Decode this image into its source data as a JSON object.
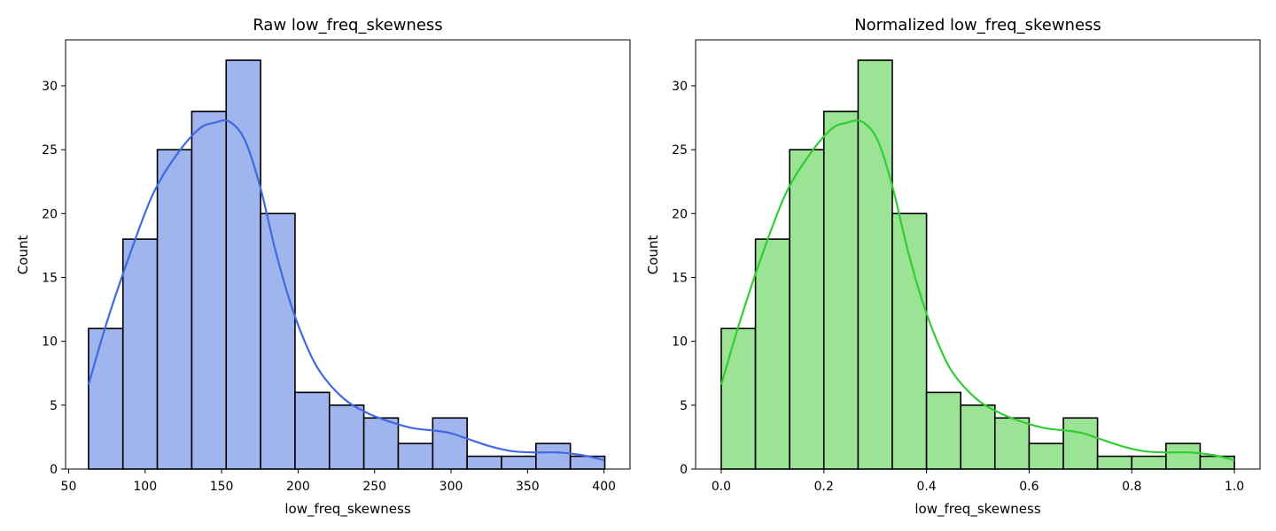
{
  "chart_data": [
    {
      "type": "bar",
      "title": "Raw low_freq_skewness",
      "xlabel": "low_freq_skewness",
      "ylabel": "Count",
      "xlim": [
        48,
        417
      ],
      "ylim": [
        0,
        33.6
      ],
      "xticks": [
        50,
        100,
        150,
        200,
        250,
        300,
        350,
        400
      ],
      "yticks": [
        0,
        5,
        10,
        15,
        20,
        25,
        30
      ],
      "bin_edges": [
        63,
        85.5,
        108,
        130.5,
        153,
        175.5,
        198,
        220.5,
        243,
        265.5,
        288,
        310.5,
        333,
        355.5,
        378,
        400.5
      ],
      "values": [
        11,
        18,
        25,
        28,
        32,
        20,
        6,
        5,
        4,
        2,
        4,
        1,
        1,
        2,
        1
      ],
      "bar_color": "#a0b4ee",
      "line_color": "#4169e1",
      "kde": {
        "x": [
          63,
          75,
          90,
          105,
          120,
          135,
          145,
          155,
          165,
          175,
          185,
          195,
          205,
          215,
          230,
          245,
          260,
          275,
          290,
          300,
          310,
          325,
          340,
          355,
          370,
          385,
          400
        ],
        "y": [
          6.6,
          11.5,
          16.8,
          21.5,
          24.5,
          26.6,
          27.1,
          27.2,
          25.8,
          22.2,
          17.2,
          13.0,
          9.8,
          7.5,
          5.5,
          4.4,
          3.7,
          3.2,
          3.0,
          2.8,
          2.4,
          1.8,
          1.4,
          1.3,
          1.3,
          1.1,
          0.7
        ]
      }
    },
    {
      "type": "bar",
      "title": "Normalized low_freq_skewness",
      "xlabel": "low_freq_skewness",
      "ylabel": "Count",
      "xlim": [
        -0.05,
        1.05
      ],
      "ylim": [
        0,
        33.6
      ],
      "xticks": [
        0.0,
        0.2,
        0.4,
        0.6,
        0.8,
        1.0
      ],
      "xtick_labels": [
        "0.0",
        "0.2",
        "0.4",
        "0.6",
        "0.8",
        "1.0"
      ],
      "yticks": [
        0,
        5,
        10,
        15,
        20,
        25,
        30
      ],
      "bin_edges": [
        0,
        0.0667,
        0.1333,
        0.2,
        0.2667,
        0.3333,
        0.4,
        0.4667,
        0.5333,
        0.6,
        0.6667,
        0.7333,
        0.8,
        0.8667,
        0.9333,
        1.0
      ],
      "values": [
        11,
        18,
        25,
        28,
        32,
        20,
        6,
        5,
        4,
        2,
        4,
        1,
        1,
        2,
        1
      ],
      "bar_color": "#9be496",
      "line_color": "#32cd32",
      "kde": {
        "x": [
          0,
          0.036,
          0.08,
          0.125,
          0.17,
          0.214,
          0.244,
          0.274,
          0.304,
          0.333,
          0.363,
          0.393,
          0.423,
          0.452,
          0.497,
          0.542,
          0.586,
          0.631,
          0.676,
          0.705,
          0.735,
          0.78,
          0.824,
          0.869,
          0.914,
          0.958,
          1.0
        ],
        "y": [
          6.6,
          11.5,
          16.8,
          21.5,
          24.5,
          26.6,
          27.1,
          27.2,
          25.8,
          22.2,
          17.2,
          13.0,
          9.8,
          7.5,
          5.5,
          4.4,
          3.7,
          3.2,
          3.0,
          2.8,
          2.4,
          1.8,
          1.4,
          1.3,
          1.3,
          1.1,
          0.7
        ]
      }
    }
  ]
}
